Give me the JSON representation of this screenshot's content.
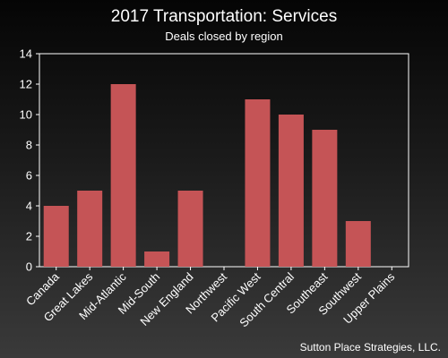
{
  "chart_data": {
    "type": "bar",
    "title": "2017 Transportation: Services",
    "subtitle": "Deals closed by region",
    "categories": [
      "Canada",
      "Great Lakes",
      "Mid-Atlantic",
      "Mid-South",
      "New England",
      "Northwest",
      "Pacific West",
      "South Central",
      "Southeast",
      "Southwest",
      "Upper Plains"
    ],
    "values": [
      4,
      5,
      12,
      1,
      5,
      0,
      11,
      10,
      9,
      3,
      0
    ],
    "xlabel": "",
    "ylabel": "",
    "ylim": [
      0,
      14
    ],
    "yticks": [
      0,
      2,
      4,
      6,
      8,
      10,
      12,
      14
    ],
    "grid": false,
    "bar_color": "#c55456",
    "background": "dark-gradient"
  },
  "footer": {
    "credit": "Sutton Place Strategies, LLC."
  }
}
